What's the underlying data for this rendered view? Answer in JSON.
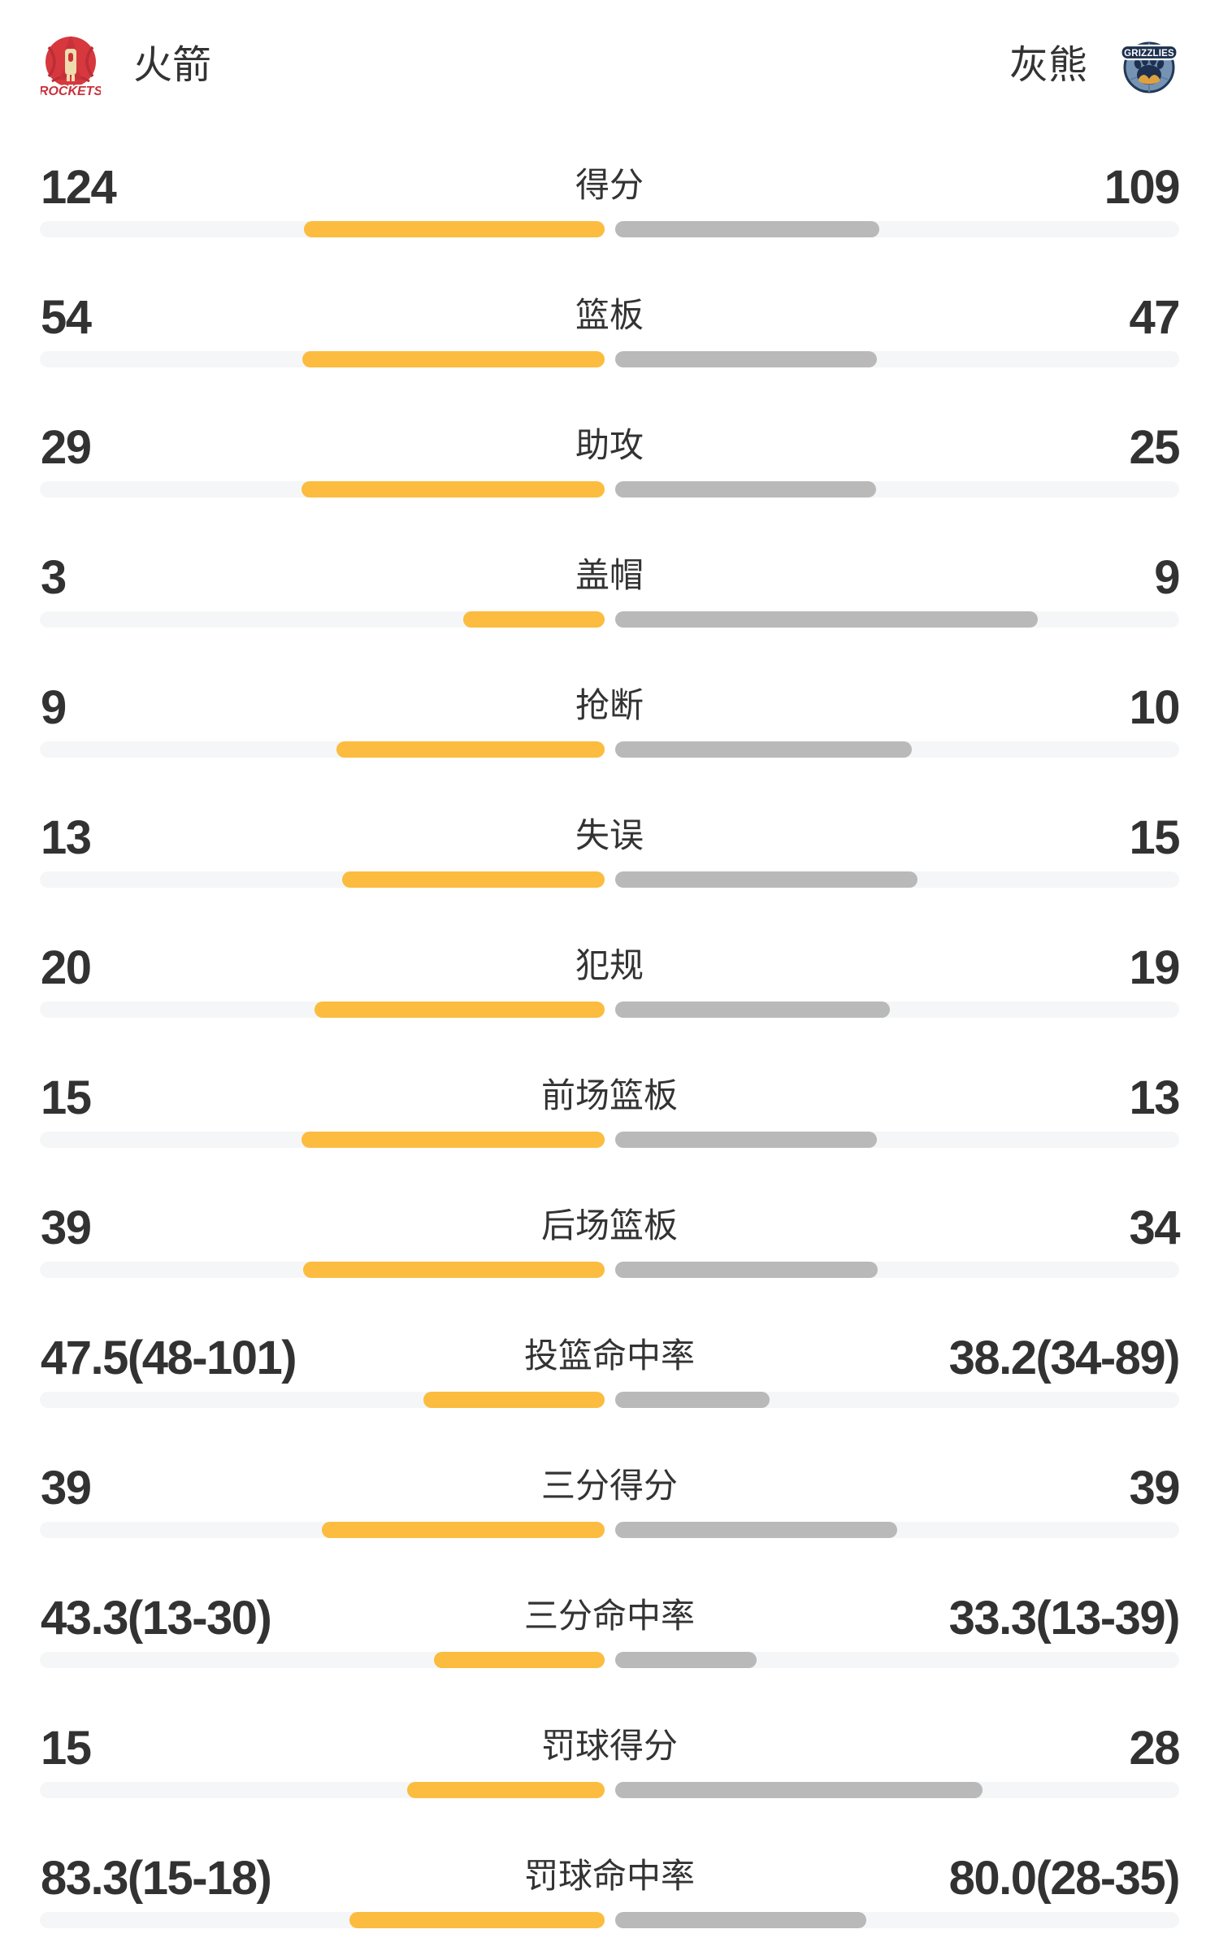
{
  "teams": {
    "home": {
      "name": "火箭",
      "logo_text": "ROCKETS"
    },
    "away": {
      "name": "灰熊",
      "logo_text": "GRIZZLIES"
    }
  },
  "colors": {
    "home_bar": "#FBBC3F",
    "away_bar": "#B9B9B9",
    "bar_track": "#F5F6F7",
    "value_text": "#323232",
    "label_text": "#333333",
    "background": "#FFFFFF",
    "rockets_red": "#D6383E",
    "rockets_dark_red": "#BC2E37",
    "rockets_cream": "#EEDCAE",
    "grizzlies_blue": "#7693B4",
    "grizzlies_navy": "#1D304F",
    "grizzlies_gold": "#DFA13E"
  },
  "chart_data": {
    "type": "bar",
    "layout": "paired-horizontal-comparison, home bars grow left-from-center (yellow), away bars grow right-from-center (gray)",
    "legend_position": "top (team headers)",
    "rows": [
      {
        "label": "得分",
        "home": "124",
        "away": "109",
        "home_fill": 0.532,
        "away_fill": 0.468
      },
      {
        "label": "篮板",
        "home": "54",
        "away": "47",
        "home_fill": 0.535,
        "away_fill": 0.465
      },
      {
        "label": "助攻",
        "home": "29",
        "away": "25",
        "home_fill": 0.537,
        "away_fill": 0.463
      },
      {
        "label": "盖帽",
        "home": "3",
        "away": "9",
        "home_fill": 0.25,
        "away_fill": 0.75
      },
      {
        "label": "抢断",
        "home": "9",
        "away": "10",
        "home_fill": 0.474,
        "away_fill": 0.526
      },
      {
        "label": "失误",
        "home": "13",
        "away": "15",
        "home_fill": 0.464,
        "away_fill": 0.536
      },
      {
        "label": "犯规",
        "home": "20",
        "away": "19",
        "home_fill": 0.513,
        "away_fill": 0.487
      },
      {
        "label": "前场篮板",
        "home": "15",
        "away": "13",
        "home_fill": 0.536,
        "away_fill": 0.464
      },
      {
        "label": "后场篮板",
        "home": "39",
        "away": "34",
        "home_fill": 0.534,
        "away_fill": 0.466
      },
      {
        "label": "投篮命中率",
        "home": "47.5(48-101)",
        "away": "38.2(34-89)",
        "home_fill": 0.321,
        "away_fill": 0.274
      },
      {
        "label": "三分得分",
        "home": "39",
        "away": "39",
        "home_fill": 0.5,
        "away_fill": 0.5
      },
      {
        "label": "三分命中率",
        "home": "43.3(13-30)",
        "away": "33.3(13-39)",
        "home_fill": 0.302,
        "away_fill": 0.251
      },
      {
        "label": "罚球得分",
        "home": "15",
        "away": "28",
        "home_fill": 0.349,
        "away_fill": 0.651
      },
      {
        "label": "罚球命中率",
        "home": "83.3(15-18)",
        "away": "80.0(28-35)",
        "home_fill": 0.452,
        "away_fill": 0.446
      }
    ]
  }
}
